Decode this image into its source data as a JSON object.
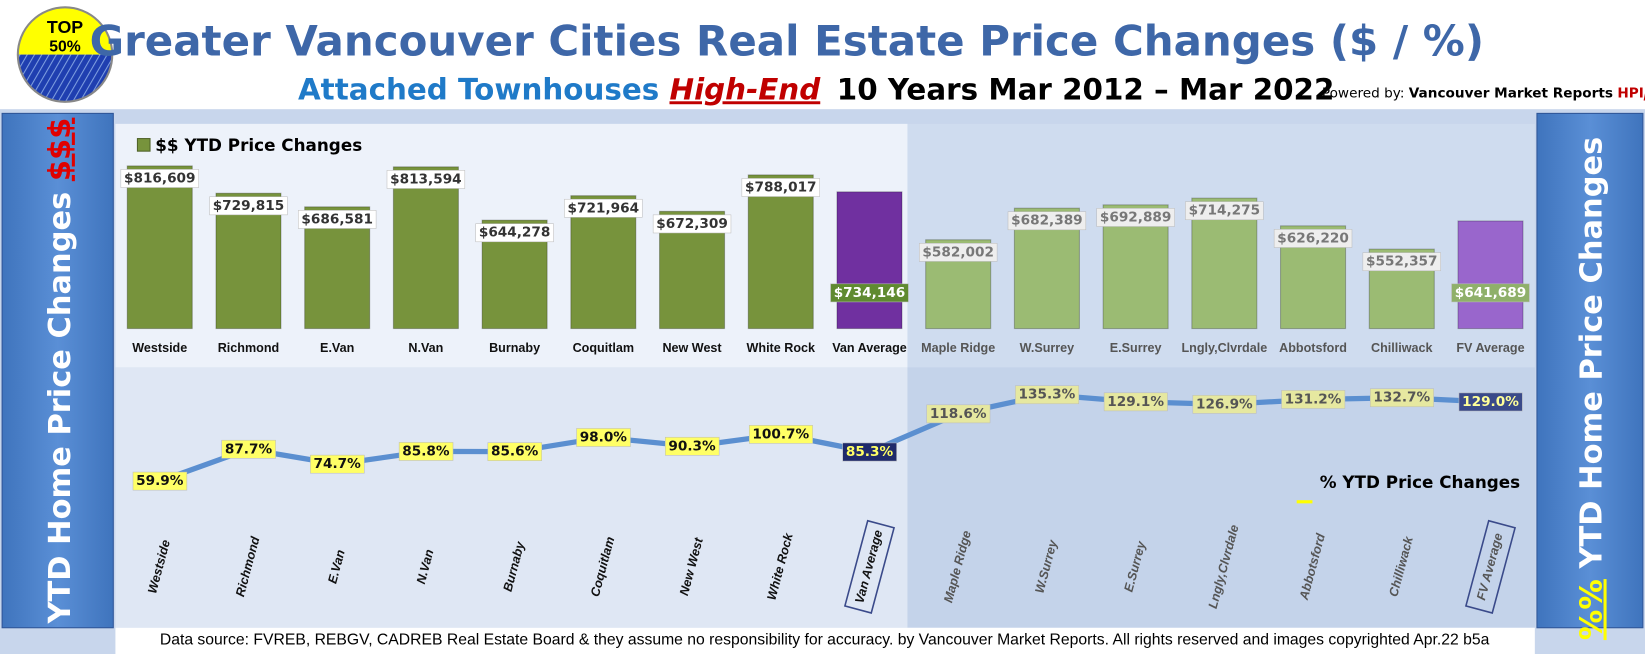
{
  "badge": {
    "line1": "TOP",
    "line2": "50%"
  },
  "title": "Greater Vancouver Cities Real Estate Price Changes ($ / %)",
  "subtitle": {
    "part1": "Attached Townhouses",
    "part2": "High-End",
    "part3": "10 Years Mar 2012 – Mar 2022"
  },
  "powered_by": {
    "label": "Powered by:",
    "name": "Vancouver Market Reports",
    "brand": "HPI",
    "brand_suffix": "p"
  },
  "left_panel": {
    "text": "YTD Home Price Changes",
    "symbol": "$$$"
  },
  "right_panel": {
    "symbol": "%%",
    "text": "YTD Home Price  Changes"
  },
  "footer": "Data source: FVREB, REBGV, CADREB Real Estate Board & they assume no responsibility for accuracy. by Vancouver Market Reports. All rights reserved and  images copyrighted Apr.22 b5a",
  "chart_data": [
    {
      "type": "bar",
      "categories": [
        "Westside",
        "Richmond",
        "E.Van",
        "N.Van",
        "Burnaby",
        "Coquitlam",
        "New West",
        "White Rock",
        "Van Average",
        "Maple Ridge",
        "W.Surrey",
        "E.Surrey",
        "Lngly,Clvrdale",
        "Abbotsford",
        "Chilliwack",
        "FV Average"
      ],
      "ylim": [
        300000,
        850000
      ],
      "series": [
        {
          "name": "$$ YTD Price Changes",
          "color": "#77933c",
          "values": [
            816609,
            729815,
            686581,
            813594,
            644278,
            721964,
            672309,
            788017,
            734146,
            582002,
            682389,
            692889,
            714275,
            626220,
            552357,
            641689
          ],
          "value_labels": [
            "$816,609",
            "$729,815",
            "$686,581",
            "$813,594",
            "$644,278",
            "$721,964",
            "$672,309",
            "$788,017",
            "$734,146",
            "$582,002",
            "$682,389",
            "$692,889",
            "$714,275",
            "$626,220",
            "$552,357",
            "$641,689"
          ],
          "colors": [
            "#77933c",
            "#77933c",
            "#77933c",
            "#77933c",
            "#77933c",
            "#77933c",
            "#77933c",
            "#77933c",
            "#7030a0",
            "#9bbb73",
            "#9bbb73",
            "#9bbb73",
            "#9bbb73",
            "#9bbb73",
            "#9bbb73",
            "#9966cc"
          ],
          "label_background": [
            "#ffffff",
            "#ffffff",
            "#ffffff",
            "#ffffff",
            "#ffffff",
            "#ffffff",
            "#ffffff",
            "#ffffff",
            "#5f8a30",
            "#eeeeee",
            "#eeeeee",
            "#eeeeee",
            "#eeeeee",
            "#eeeeee",
            "#eeeeee",
            "#8fb06a"
          ],
          "label_text_color": [
            "#333333",
            "#333333",
            "#333333",
            "#333333",
            "#333333",
            "#333333",
            "#333333",
            "#333333",
            "#ffffff",
            "#777777",
            "#777777",
            "#777777",
            "#777777",
            "#777777",
            "#777777",
            "#ffffff"
          ]
        }
      ]
    },
    {
      "type": "line",
      "categories": [
        "Westside",
        "Richmond",
        "E.Van",
        "N.Van",
        "Burnaby",
        "Coquitlam",
        "New West",
        "White Rock",
        "Van Average",
        "Maple Ridge",
        "W.Surrey",
        "E.Surrey",
        "Lngly,Clvrdale",
        "Abbotsford",
        "Chilliwack",
        "FV Average"
      ],
      "ylim": [
        40,
        150
      ],
      "series": [
        {
          "name": "% YTD Price Changes",
          "color": "#5b8fd0",
          "values": [
            59.9,
            87.7,
            74.7,
            85.8,
            85.6,
            98.0,
            90.3,
            100.7,
            85.3,
            118.6,
            135.3,
            129.1,
            126.9,
            131.2,
            132.7,
            129.0
          ],
          "value_labels": [
            "59.9%",
            "87.7%",
            "74.7%",
            "85.8%",
            "85.6%",
            "98.0%",
            "90.3%",
            "100.7%",
            "85.3%",
            "118.6%",
            "135.3%",
            "129.1%",
            "126.9%",
            "131.2%",
            "132.7%",
            "129.0%"
          ],
          "label_background": [
            "#ffff66",
            "#ffff66",
            "#ffff66",
            "#ffff66",
            "#ffff66",
            "#ffff66",
            "#ffff66",
            "#ffff66",
            "#1f2a6b",
            "#e6e8a0",
            "#e6e8a0",
            "#e6e8a0",
            "#e6e8a0",
            "#e6e8a0",
            "#e6e8a0",
            "#3a4a8a"
          ],
          "label_text_color": [
            "#111111",
            "#111111",
            "#111111",
            "#111111",
            "#111111",
            "#111111",
            "#111111",
            "#111111",
            "#ffff66",
            "#555555",
            "#555555",
            "#555555",
            "#555555",
            "#555555",
            "#555555",
            "#ffff99"
          ]
        }
      ]
    }
  ]
}
